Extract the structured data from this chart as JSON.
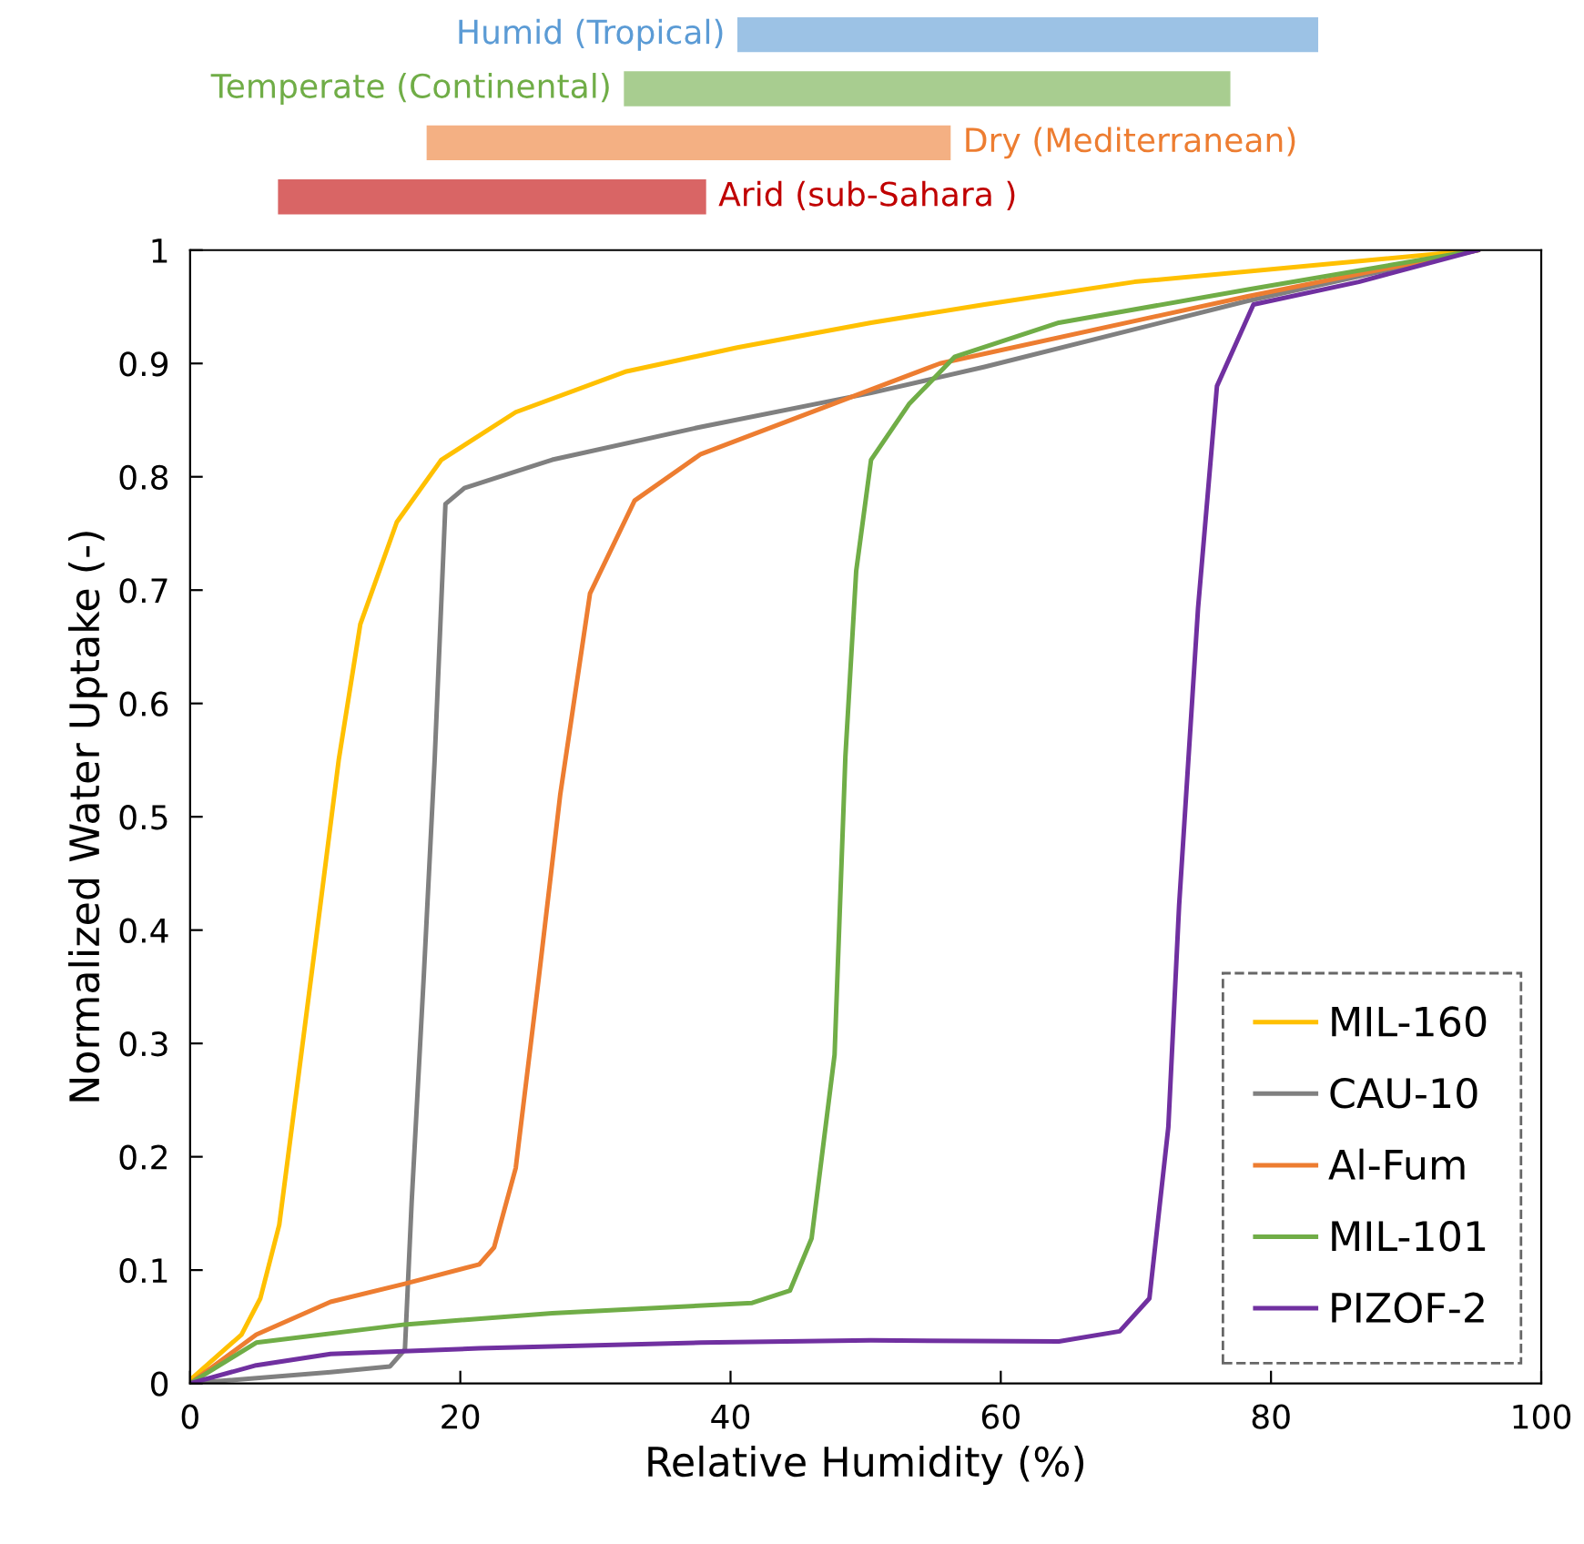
{
  "chart_data": [
    {
      "type": "bar",
      "orientation": "horizontal",
      "categories": [
        "Humid (Tropical)",
        "Temperate (Continental)",
        "Dry (Mediterranean)",
        "Arid (sub-Sahara )"
      ],
      "base": [
        40.6,
        32.2,
        17.6,
        6.6
      ],
      "values": [
        42.8,
        44.7,
        38.6,
        31.5
      ],
      "colors": [
        "#5b9bd5",
        "#70ad47",
        "#ed7d31",
        "#c00000"
      ],
      "xlim": [
        0,
        100
      ],
      "tick_labels": false
    },
    {
      "type": "line",
      "xlabel": "Relative Humidity (%)",
      "ylabel": "Normalized Water Uptake (-)",
      "xlim": [
        0,
        100
      ],
      "xticks": [
        0,
        20,
        40,
        60,
        80,
        100
      ],
      "ylim": [
        0,
        1
      ],
      "yticks": [
        0,
        0.1,
        0.2,
        0.3,
        0.4,
        0.5,
        0.6,
        0.7,
        0.8,
        0.9,
        1
      ],
      "legend": "bottom right",
      "marker": "none",
      "line_style": "solid",
      "series": [
        {
          "name": "MIL-160",
          "color": "#ffc000",
          "x": [
            0,
            3.8,
            5.2,
            6.6,
            7.9,
            9.3,
            11,
            12.6,
            15.3,
            18.6,
            24.1,
            32.3,
            40.5,
            50.4,
            58.8,
            69.9,
            95.3
          ],
          "values": [
            0.003,
            0.043,
            0.075,
            0.14,
            0.26,
            0.39,
            0.55,
            0.67,
            0.76,
            0.815,
            0.857,
            0.893,
            0.914,
            0.936,
            0.952,
            0.972,
            1.0
          ]
        },
        {
          "name": "CAU-10",
          "color": "#808080",
          "x": [
            0,
            10.4,
            14.8,
            15.9,
            16.4,
            17.3,
            18.1,
            18.9,
            20.3,
            26.8,
            37.8,
            50.4,
            58.8,
            78.2,
            95.3
          ],
          "values": [
            0,
            0.01,
            0.015,
            0.03,
            0.16,
            0.36,
            0.55,
            0.776,
            0.79,
            0.815,
            0.844,
            0.874,
            0.897,
            0.955,
            1.0
          ]
        },
        {
          "name": "Al-Fum",
          "color": "#ed7d31",
          "x": [
            0,
            4.9,
            10.4,
            15.9,
            21.4,
            22.5,
            24.1,
            25.8,
            27.4,
            29.6,
            32.9,
            37.8,
            50.4,
            55.5,
            78.2,
            95.3
          ],
          "values": [
            0,
            0.043,
            0.072,
            0.088,
            0.105,
            0.12,
            0.19,
            0.357,
            0.52,
            0.697,
            0.779,
            0.82,
            0.877,
            0.9,
            0.959,
            1.0
          ]
        },
        {
          "name": "MIL-101",
          "color": "#70ad47",
          "x": [
            0,
            4.9,
            15.9,
            26.8,
            41.6,
            44.4,
            46,
            47.7,
            48.5,
            49.3,
            50.4,
            53.2,
            56.6,
            64.3,
            78.2,
            95.3
          ],
          "values": [
            0,
            0.036,
            0.052,
            0.062,
            0.071,
            0.082,
            0.128,
            0.29,
            0.553,
            0.717,
            0.815,
            0.864,
            0.906,
            0.936,
            0.965,
            1.0
          ]
        },
        {
          "name": "PIZOF-2",
          "color": "#7030a0",
          "x": [
            0,
            4.9,
            10.4,
            21.4,
            37.8,
            50.4,
            64.3,
            68.8,
            71,
            72.4,
            73.2,
            74.6,
            76,
            78.7,
            86.5,
            95.3
          ],
          "values": [
            0,
            0.016,
            0.026,
            0.031,
            0.036,
            0.038,
            0.037,
            0.046,
            0.075,
            0.226,
            0.422,
            0.684,
            0.88,
            0.952,
            0.972,
            1.0
          ]
        }
      ]
    }
  ]
}
